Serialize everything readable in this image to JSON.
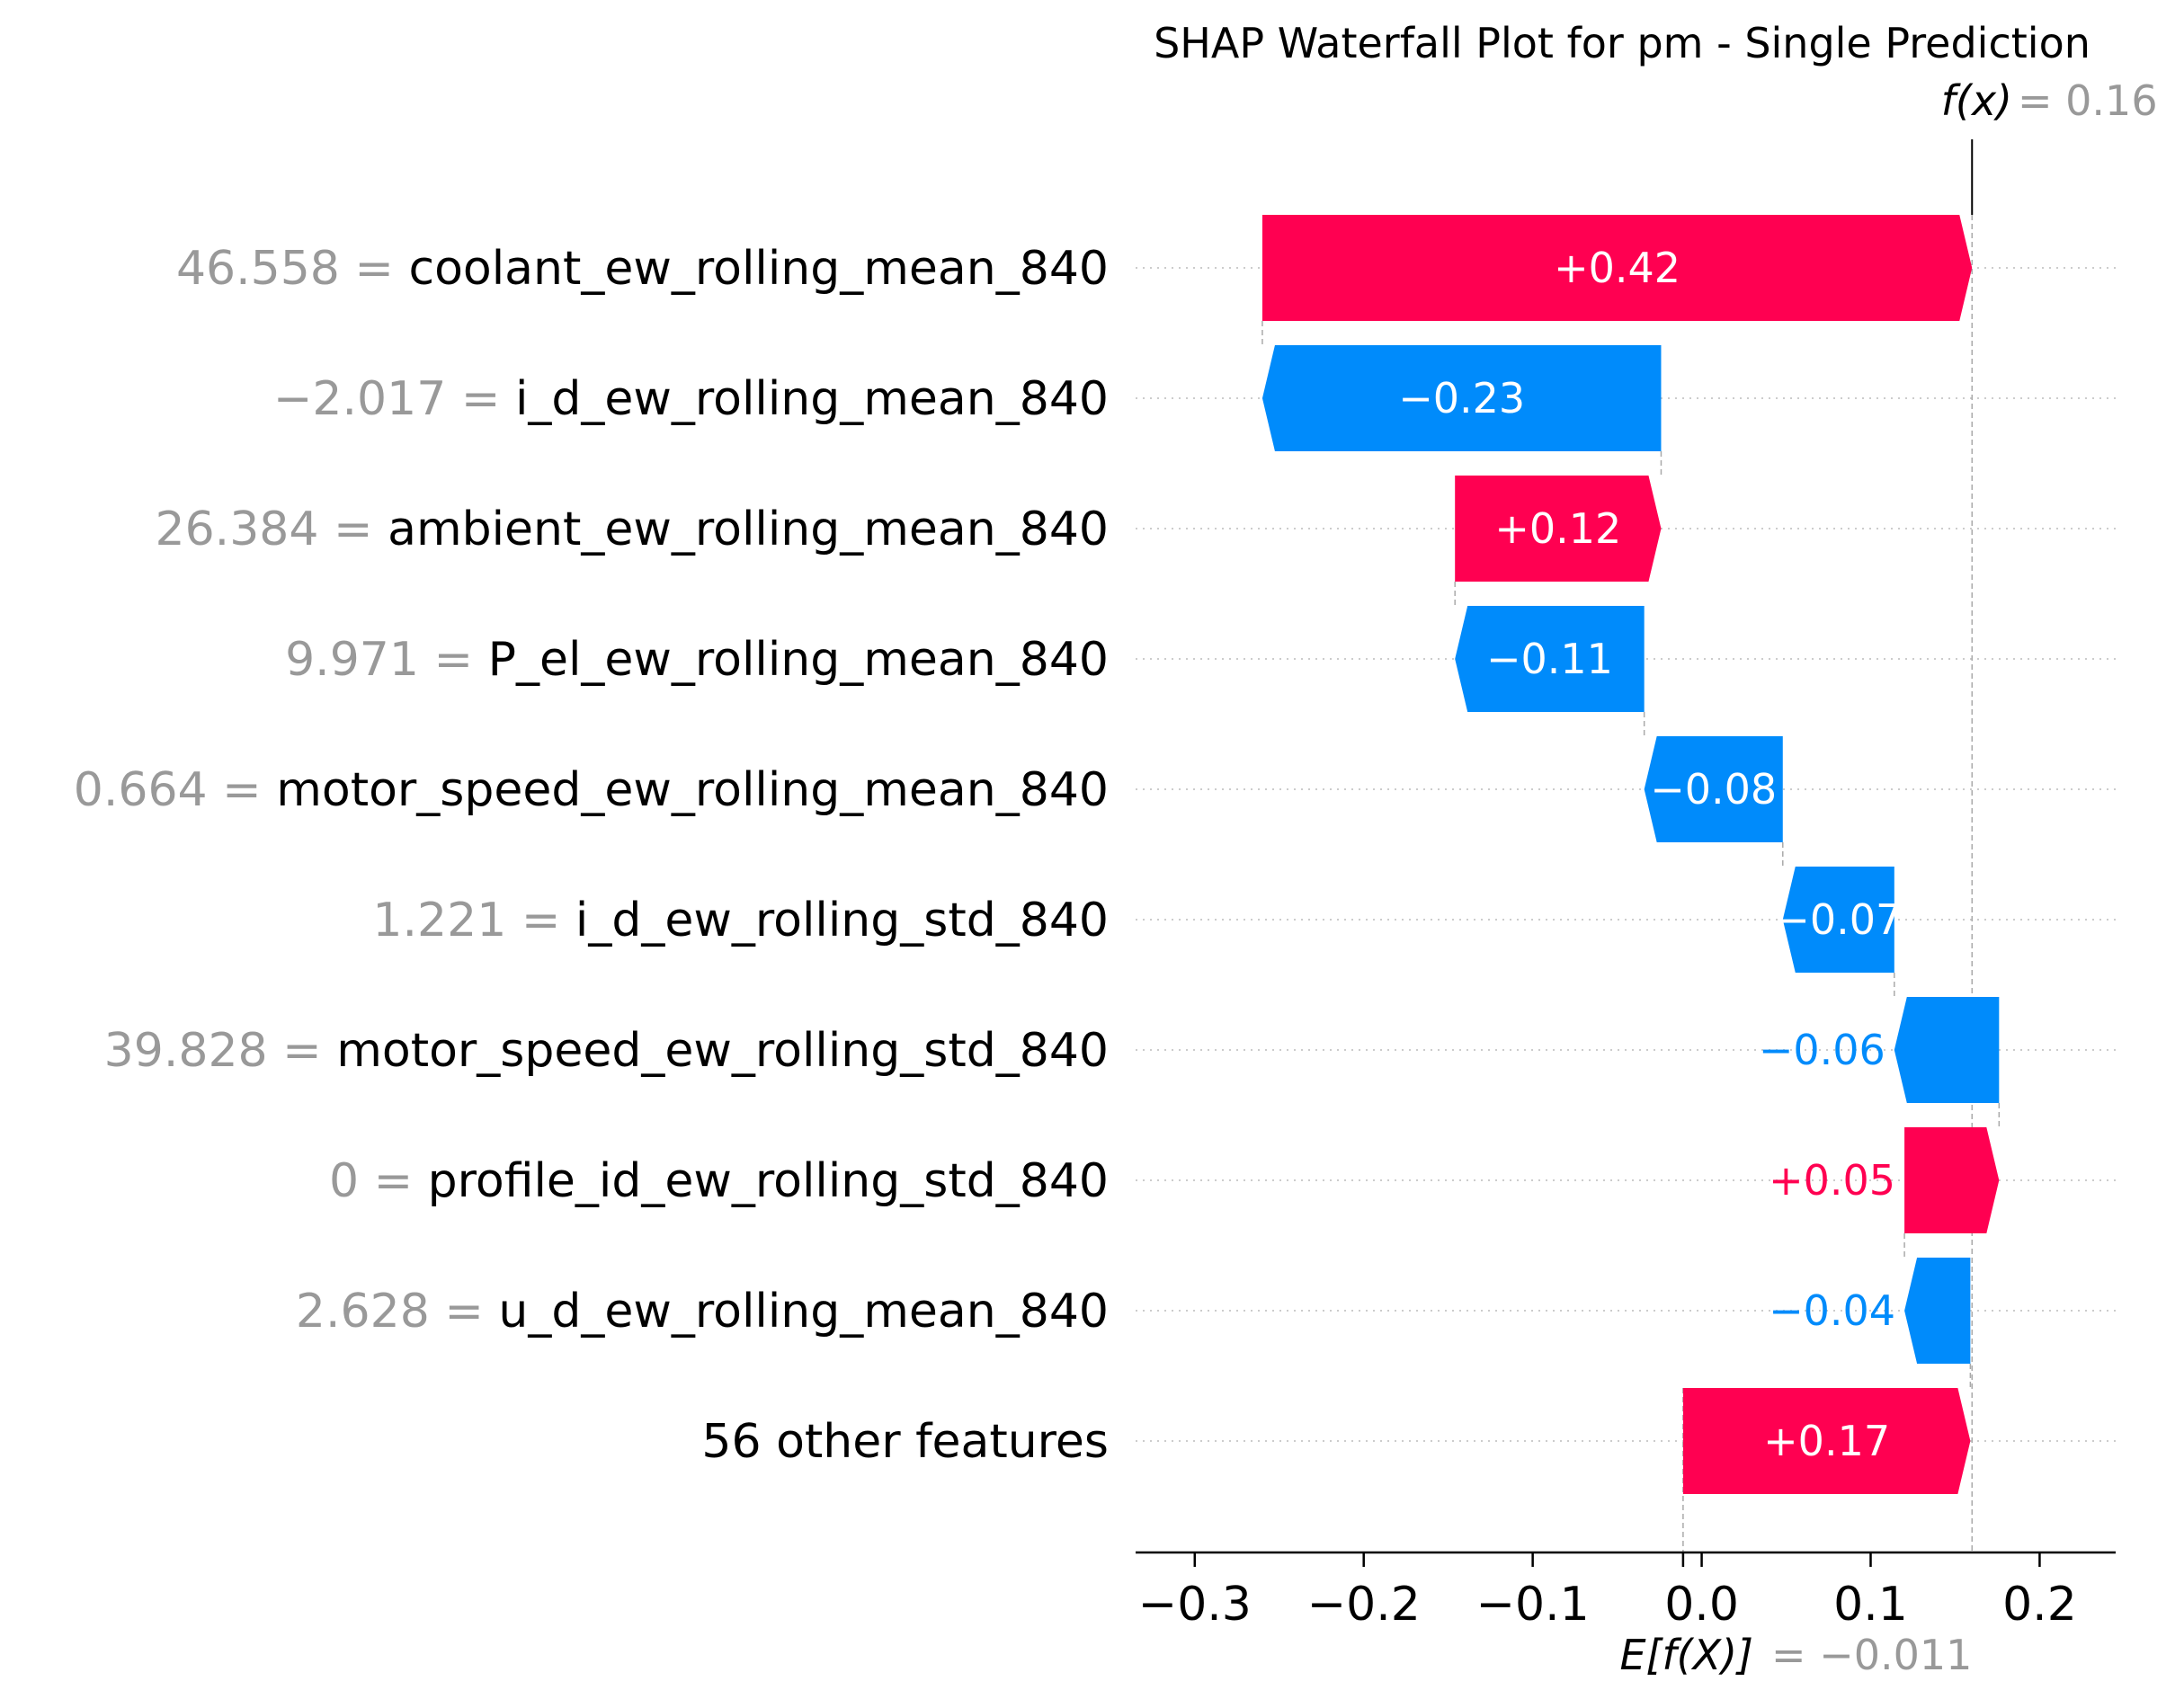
{
  "chart_data": {
    "type": "waterfall",
    "title": "SHAP Waterfall Plot for pm - Single Prediction",
    "fx_label": "f(x)",
    "fx_value": 0.16,
    "fx_value_text": "= 0.16",
    "efx_label": "E[f(X)]",
    "efx_value": -0.011,
    "efx_value_text": "= −0.011",
    "xlim": [
      -0.335,
      0.245
    ],
    "x_ticks": [
      -0.3,
      -0.2,
      -0.1,
      0.0,
      0.1,
      0.2
    ],
    "x_tick_labels": [
      "−0.3",
      "−0.2",
      "−0.1",
      "0.0",
      "0.1",
      "0.2"
    ],
    "features": [
      {
        "value_text": "46.558 =",
        "name": "coolant_ew_rolling_mean_840",
        "shap": 0.42,
        "label": "+0.42",
        "start": -0.26,
        "end": 0.16
      },
      {
        "value_text": "−2.017 =",
        "name": "i_d_ew_rolling_mean_840",
        "shap": -0.23,
        "label": "−0.23",
        "start": -0.024,
        "end": -0.26
      },
      {
        "value_text": "26.384 =",
        "name": "ambient_ew_rolling_mean_840",
        "shap": 0.12,
        "label": "+0.12",
        "start": -0.146,
        "end": -0.024
      },
      {
        "value_text": "9.971 =",
        "name": "P_el_ew_rolling_mean_840",
        "shap": -0.11,
        "label": "−0.11",
        "start": -0.034,
        "end": -0.146
      },
      {
        "value_text": "0.664 =",
        "name": "motor_speed_ew_rolling_mean_840",
        "shap": -0.08,
        "label": "−0.08",
        "start": 0.048,
        "end": -0.034
      },
      {
        "value_text": "1.221 =",
        "name": "i_d_ew_rolling_std_840",
        "shap": -0.07,
        "label": "−0.07",
        "start": 0.114,
        "end": 0.048
      },
      {
        "value_text": "39.828 =",
        "name": "motor_speed_ew_rolling_std_840",
        "shap": -0.06,
        "label": "−0.06",
        "start": 0.176,
        "end": 0.114
      },
      {
        "value_text": "0 =",
        "name": "profile_id_ew_rolling_std_840",
        "shap": 0.05,
        "label": "+0.05",
        "start": 0.12,
        "end": 0.176
      },
      {
        "value_text": "2.628 =",
        "name": "u_d_ew_rolling_mean_840",
        "shap": -0.04,
        "label": "−0.04",
        "start": 0.159,
        "end": 0.12
      },
      {
        "value_text": "",
        "name": "56 other features",
        "shap": 0.17,
        "label": "+0.17",
        "start": -0.011,
        "end": 0.159
      }
    ],
    "colors": {
      "positive": "#ff0051",
      "negative": "#008bfb",
      "axis": "#000000",
      "muted": "#999999",
      "grid": "#cccccc"
    }
  }
}
